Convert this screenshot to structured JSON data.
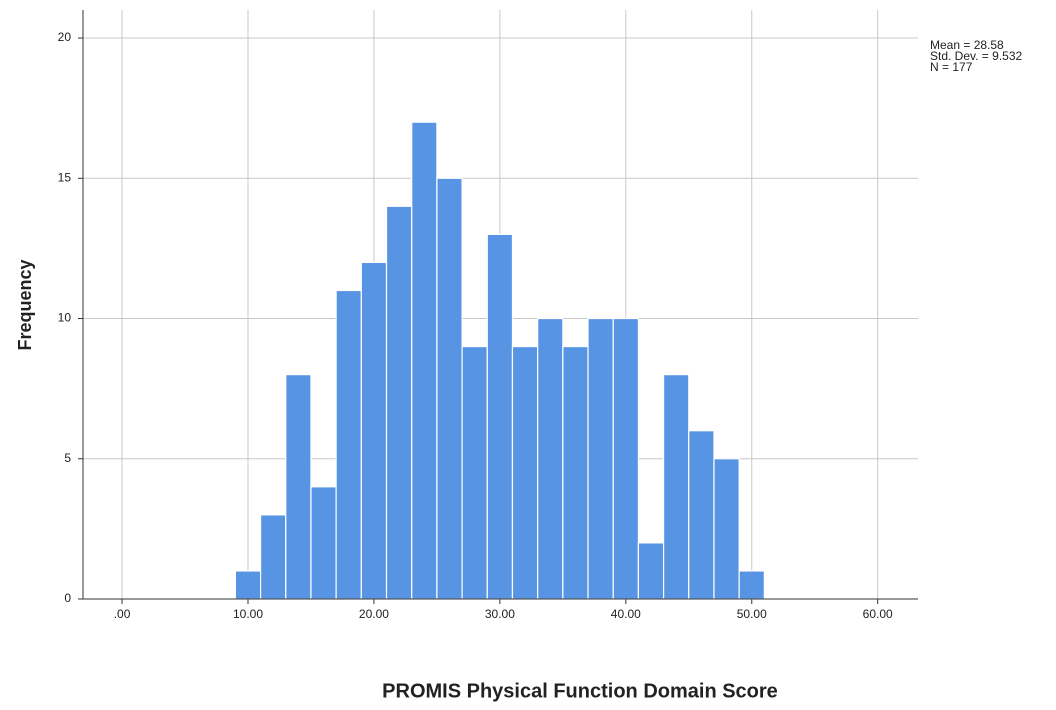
{
  "chart_data": {
    "type": "histogram",
    "x_label": "PROMIS Physical Function Domain Score",
    "y_label": "Frequency",
    "annotations": [
      "Mean = 28.58",
      "Std. Dev. = 9.532",
      "N = 177"
    ],
    "bins": [
      9,
      11,
      13,
      15,
      17,
      19,
      21,
      23,
      25,
      27,
      29,
      31,
      33,
      35,
      37,
      39,
      41,
      43,
      45,
      47,
      49,
      51
    ],
    "values": [
      1,
      3,
      8,
      4,
      11,
      12,
      14,
      17,
      15,
      9,
      13,
      9,
      10,
      9,
      10,
      10,
      2,
      8,
      6,
      5,
      1
    ],
    "color": "#5794e3",
    "xlim": [
      -3.1,
      63.2
    ],
    "xticks": [
      {
        "value": 0,
        "label": ".00"
      },
      {
        "value": 10,
        "label": "10.00"
      },
      {
        "value": 20,
        "label": "20.00"
      },
      {
        "value": 30,
        "label": "30.00"
      },
      {
        "value": 40,
        "label": "40.00"
      },
      {
        "value": 50,
        "label": "50.00"
      },
      {
        "value": 60,
        "label": "60.00"
      }
    ],
    "ylim": [
      0,
      21
    ],
    "yticks": [
      0,
      5,
      10,
      15,
      20
    ],
    "grid": true
  }
}
